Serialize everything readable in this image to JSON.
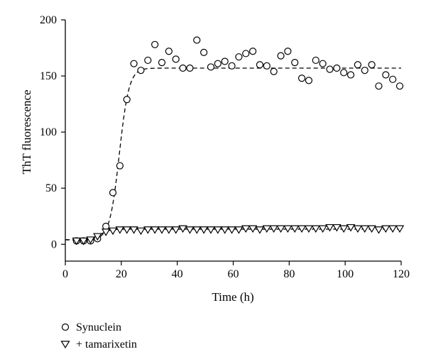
{
  "chart_data": {
    "type": "scatter",
    "xlabel": "Time (h)",
    "ylabel": "ThT fluorescence",
    "xlim": [
      0,
      120
    ],
    "ylim": [
      -15,
      200
    ],
    "xticks": [
      0,
      20,
      40,
      60,
      80,
      100,
      120
    ],
    "yticks": [
      0,
      50,
      100,
      150,
      200
    ],
    "grid": false,
    "legend_position": "bottom-left, below plot",
    "series": [
      {
        "name": "Synuclein",
        "marker": "circle",
        "x": [
          4,
          6.5,
          9,
          11.5,
          14.5,
          17,
          19.5,
          22,
          24.5,
          27,
          29.5,
          32,
          34.5,
          37,
          39.5,
          42,
          44.5,
          47,
          49.5,
          52,
          54.5,
          57,
          59.5,
          62,
          64.5,
          67,
          69.5,
          72,
          74.5,
          77,
          79.5,
          82,
          84.5,
          87,
          89.5,
          92,
          94.5,
          97,
          99.5,
          102,
          104.5,
          107,
          109.5,
          112,
          114.5,
          117,
          119.5
        ],
        "y": [
          3,
          3,
          3,
          5,
          16,
          46,
          70,
          129,
          161,
          155,
          164,
          178,
          162,
          172,
          165,
          157,
          157,
          182,
          171,
          158,
          161,
          163,
          159,
          167,
          170,
          172,
          160,
          159,
          154,
          168,
          172,
          162,
          148,
          146,
          164,
          161,
          156,
          157,
          153,
          151,
          160,
          155,
          160,
          141,
          151,
          147,
          141
        ]
      },
      {
        "name": "+ tamarixetin",
        "marker": "triangle-down",
        "x": [
          4,
          6.5,
          9,
          11.5,
          14.5,
          17,
          19.5,
          22,
          24.5,
          27,
          29.5,
          32,
          34.5,
          37,
          39.5,
          42,
          44.5,
          47,
          49.5,
          52,
          54.5,
          57,
          59.5,
          62,
          64.5,
          67,
          69.5,
          72,
          74.5,
          77,
          79.5,
          82,
          84.5,
          87,
          89.5,
          92,
          94.5,
          97,
          99.5,
          102,
          104.5,
          107,
          109.5,
          112,
          114.5,
          117,
          119.5
        ],
        "y": [
          3,
          3,
          4,
          7,
          11,
          12,
          13,
          13,
          13,
          12,
          13,
          13,
          13,
          13,
          13,
          14,
          13,
          13,
          13,
          13,
          13,
          13,
          13,
          13,
          14,
          14,
          13,
          14,
          14,
          14,
          14,
          14,
          14,
          14,
          14,
          14,
          15,
          15,
          14,
          15,
          14,
          14,
          14,
          13,
          14,
          14,
          14
        ]
      }
    ],
    "fit_curves": [
      {
        "style": "dashed",
        "model": "sigmoid",
        "baseline": 4,
        "plateau": 157,
        "midpoint": 19.3,
        "slope": 1.15,
        "x_range": [
          0,
          120
        ]
      },
      {
        "style": "dashed",
        "model": "sigmoid",
        "baseline": 4,
        "plateau": 13.5,
        "midpoint": 12.5,
        "slope": 1.2,
        "x_range": [
          0,
          120
        ]
      }
    ]
  }
}
